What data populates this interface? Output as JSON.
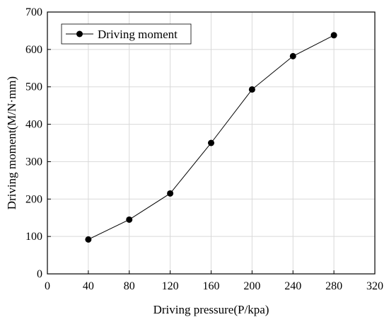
{
  "chart_data": {
    "type": "line",
    "title": "",
    "xlabel": "Driving pressure(P/kpa)",
    "ylabel": "Driving moment(M/N·mm)",
    "xlim": [
      0,
      320
    ],
    "ylim": [
      0,
      700
    ],
    "xticks": [
      0,
      40,
      80,
      120,
      160,
      200,
      240,
      280,
      320
    ],
    "yticks": [
      0,
      100,
      200,
      300,
      400,
      500,
      600,
      700
    ],
    "grid": true,
    "legend": "top-left",
    "series": [
      {
        "name": "Driving moment",
        "color": "#000000",
        "x": [
          40,
          80,
          120,
          160,
          200,
          240,
          280
        ],
        "y": [
          92,
          145,
          215,
          350,
          493,
          582,
          638
        ]
      }
    ]
  }
}
